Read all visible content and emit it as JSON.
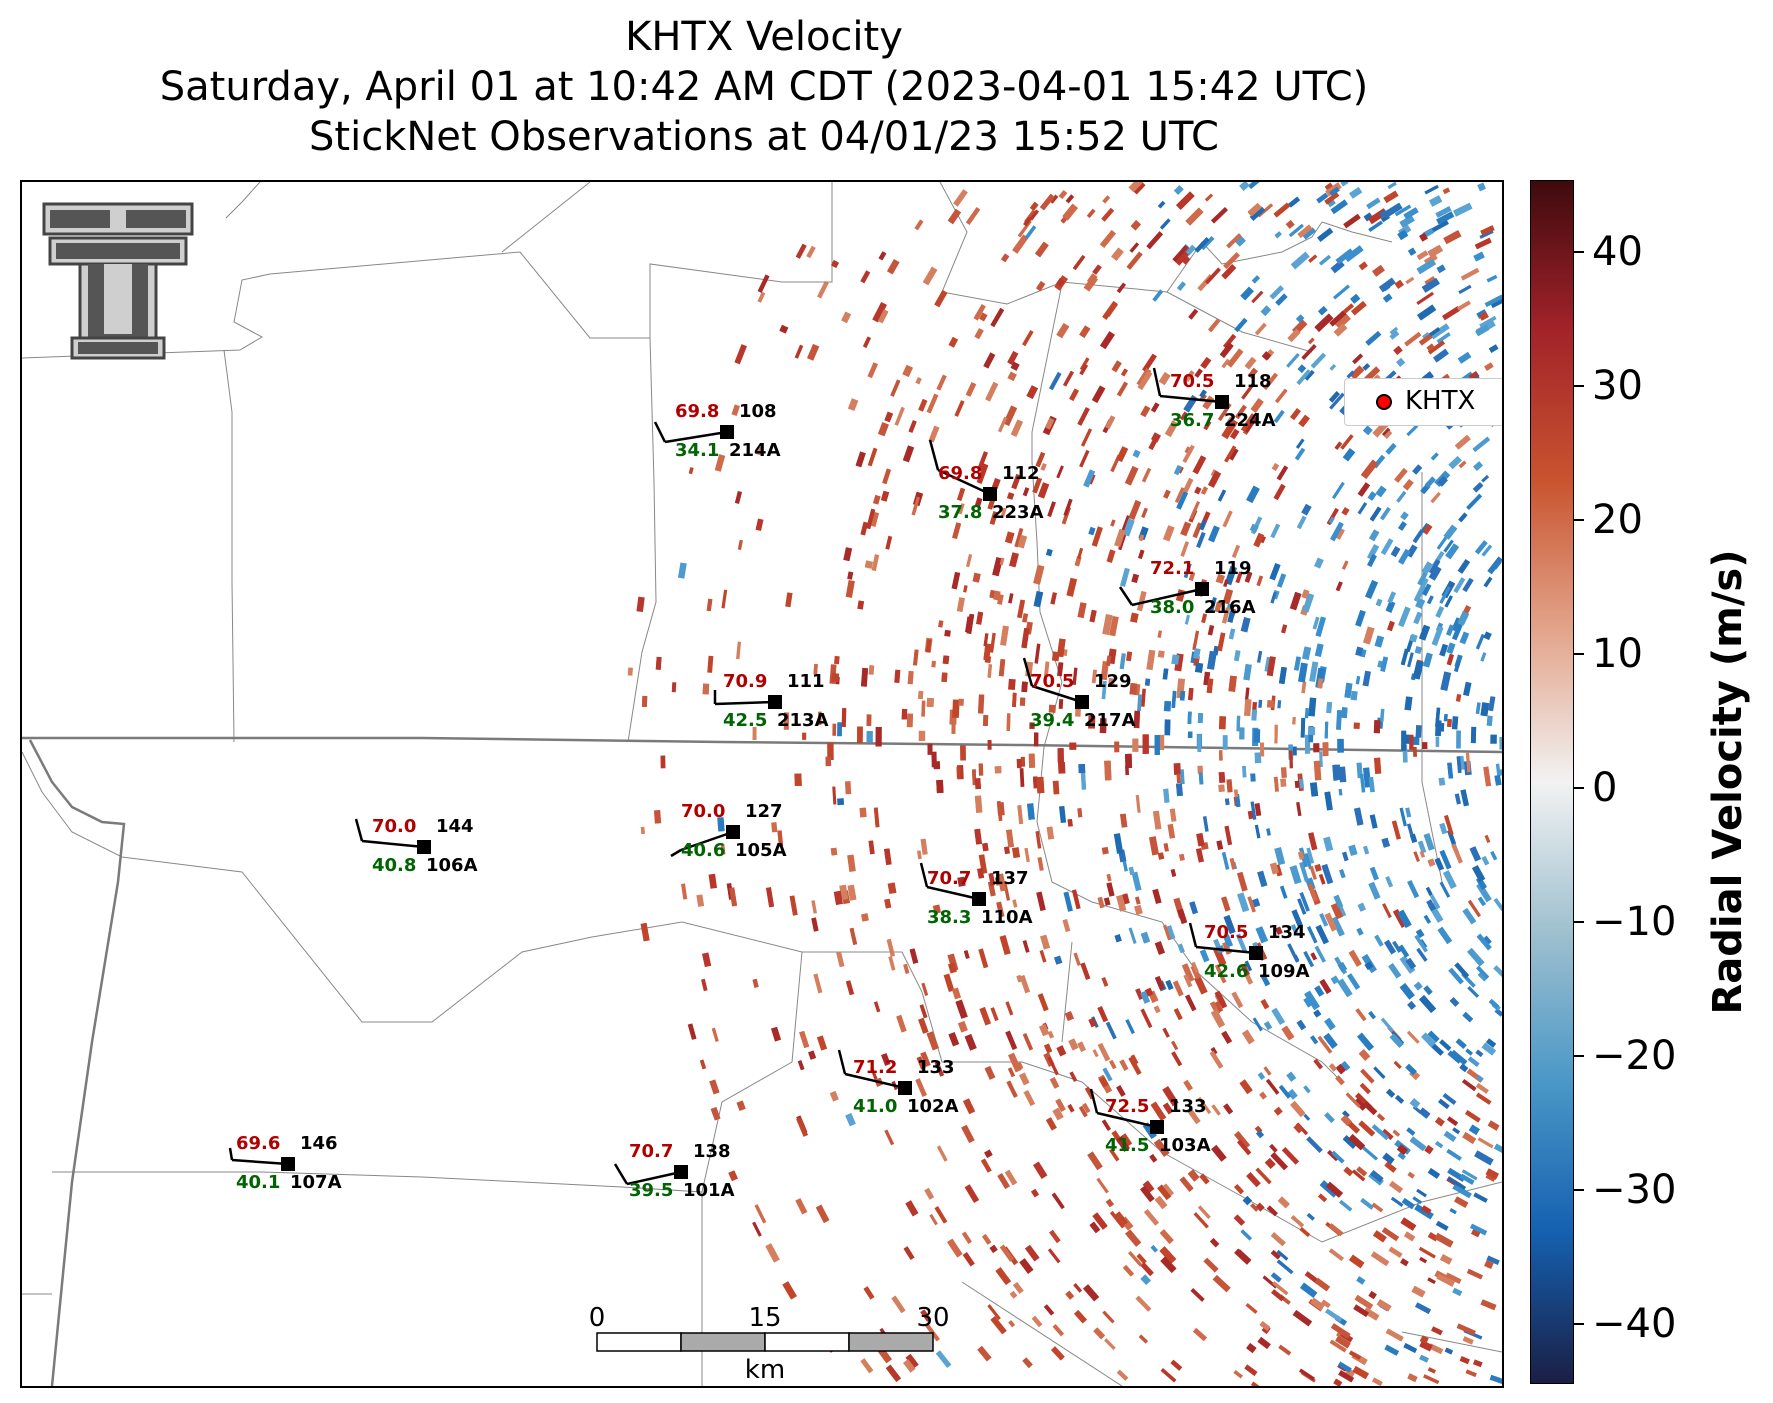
{
  "title": {
    "line1": "KHTX Velocity",
    "line2": "Saturday, April 01 at 10:42 AM CDT (2023-04-01 15:42 UTC)",
    "line3": "StickNet Observations at 04/01/23 15:52 UTC"
  },
  "legend": {
    "label": "KHTX"
  },
  "colorbar": {
    "label": "Radial Velocity (m/s)",
    "ticks": [
      "40",
      "30",
      "20",
      "10",
      "0",
      "−10",
      "−20",
      "−30",
      "−40"
    ],
    "tick_values": [
      40,
      30,
      20,
      10,
      0,
      -10,
      -20,
      -30,
      -40
    ],
    "range": [
      -45,
      45
    ],
    "colors": [
      "#1a1f45",
      "#1560b0",
      "#4a97c7",
      "#9fc0cf",
      "#f2f2f2",
      "#e3a58c",
      "#c9542f",
      "#a3232a",
      "#3f0a0e"
    ]
  },
  "scale_bar": {
    "ticks": [
      "0",
      "15",
      "30"
    ],
    "unit": "km"
  },
  "stations": [
    {
      "id": "214A",
      "temp": "69.8",
      "dew": "34.1",
      "dir": "108"
    },
    {
      "id": "223A",
      "temp": "69.8",
      "dew": "37.8",
      "dir": "112"
    },
    {
      "id": "224A",
      "temp": "70.5",
      "dew": "36.7",
      "dir": "118"
    },
    {
      "id": "216A",
      "temp": "72.1",
      "dew": "38.0",
      "dir": "119"
    },
    {
      "id": "213A",
      "temp": "70.9",
      "dew": "42.5",
      "dir": "111"
    },
    {
      "id": "217A",
      "temp": "70.5",
      "dew": "39.4",
      "dir": "129"
    },
    {
      "id": "106A",
      "temp": "70.0",
      "dew": "40.8",
      "dir": "144"
    },
    {
      "id": "105A",
      "temp": "70.0",
      "dew": "40.6",
      "dir": "127"
    },
    {
      "id": "110A",
      "temp": "70.7",
      "dew": "38.3",
      "dir": "137"
    },
    {
      "id": "109A",
      "temp": "70.5",
      "dew": "42.6",
      "dir": "134"
    },
    {
      "id": "102A",
      "temp": "71.2",
      "dew": "41.0",
      "dir": "133"
    },
    {
      "id": "103A",
      "temp": "72.5",
      "dew": "41.5",
      "dir": "133"
    },
    {
      "id": "107A",
      "temp": "69.6",
      "dew": "40.1",
      "dir": "146"
    },
    {
      "id": "101A",
      "temp": "70.7",
      "dew": "39.5",
      "dir": "138"
    }
  ]
}
